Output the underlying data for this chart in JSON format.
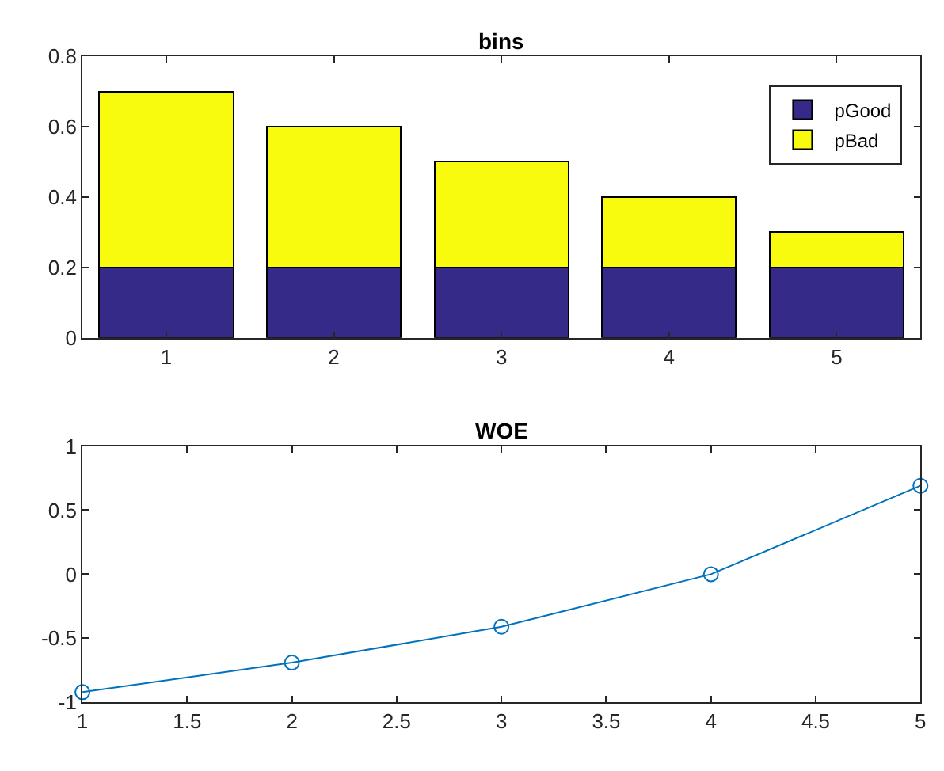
{
  "chart_data": [
    {
      "type": "bar",
      "title": "bins",
      "categories": [
        "1",
        "2",
        "3",
        "4",
        "5"
      ],
      "stacked": true,
      "ylim": [
        0,
        0.8
      ],
      "yticks": [
        0,
        0.2,
        0.4,
        0.6,
        0.8
      ],
      "legend": "top right",
      "series": [
        {
          "name": "pGood",
          "color": "#352a87",
          "values": [
            0.2,
            0.2,
            0.2,
            0.2,
            0.2
          ]
        },
        {
          "name": "pBad",
          "color": "#f9fb0e",
          "values": [
            0.5,
            0.4,
            0.3,
            0.2,
            0.1
          ]
        }
      ]
    },
    {
      "type": "line",
      "title": "WOE",
      "x": [
        1,
        2,
        3,
        4,
        5
      ],
      "xlim": [
        1,
        5
      ],
      "xticks": [
        1,
        1.5,
        2,
        2.5,
        3,
        3.5,
        4,
        4.5,
        5
      ],
      "ylim": [
        -1,
        1
      ],
      "yticks": [
        -1,
        -0.5,
        0,
        0.5,
        1
      ],
      "marker": "circle",
      "line_style": "solid",
      "series": [
        {
          "color": "#0072bd",
          "values": [
            -0.92,
            -0.69,
            -0.41,
            0,
            0.69
          ]
        }
      ]
    }
  ]
}
